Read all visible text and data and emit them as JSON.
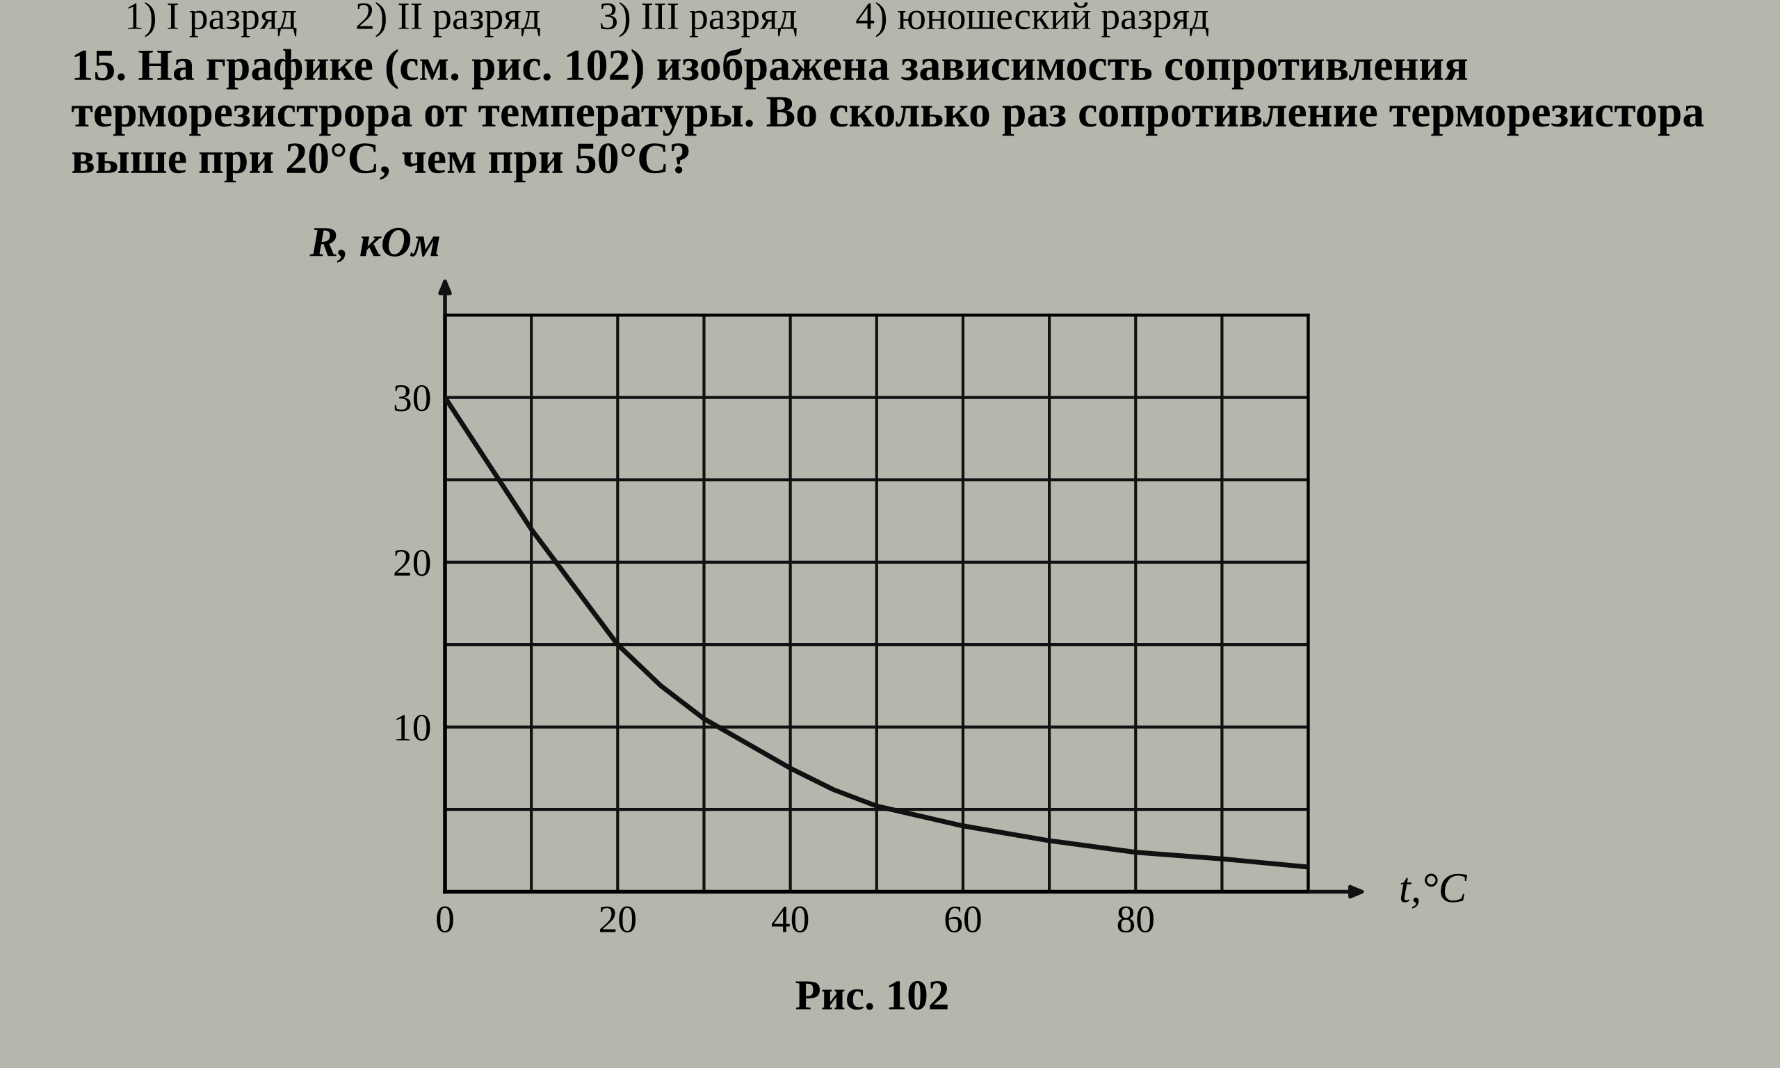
{
  "chart_data": {
    "type": "line",
    "title": "15. На графике (см. рис. 102) изображена зависимость сопротивления терморезистрора от температуры. Во сколько раз сопротивление терморезистора выше при 20°C, чем при 50°C?",
    "xlabel": "t,°C",
    "ylabel": "R, кОм",
    "annotations": [
      "1) I разряд      2) II разряд      3) III разряд      4) юношеский разряд",
      "Рис. 102"
    ],
    "x": [
      0,
      5,
      10,
      15,
      20,
      25,
      30,
      35,
      40,
      45,
      50,
      60,
      70,
      80,
      90,
      100
    ],
    "series": [
      {
        "color": "#111111",
        "values": [
          30,
          26,
          22,
          18.5,
          15,
          12.5,
          10.5,
          9,
          7.5,
          6.2,
          5.2,
          4,
          3.1,
          2.4,
          2,
          1.5
        ]
      }
    ],
    "xlim": [
      0,
      100
    ],
    "ylim": [
      0,
      35
    ],
    "xticks": [
      0,
      {
        "value": 10,
        "label": null
      },
      20,
      {
        "value": 30,
        "label": null
      },
      40,
      {
        "value": 50,
        "label": null
      },
      60,
      {
        "value": 70,
        "label": null
      },
      80,
      {
        "value": 90,
        "label": null
      },
      {
        "value": 100,
        "label": null
      }
    ],
    "yticks": [
      {
        "value": 0,
        "label": null
      },
      {
        "value": 5,
        "label": null
      },
      10,
      {
        "value": 15,
        "label": null
      },
      20,
      {
        "value": 25,
        "label": null
      },
      30,
      {
        "value": 35,
        "label": null
      }
    ],
    "grid": true,
    "line_style": "solid",
    "marker": "none"
  }
}
